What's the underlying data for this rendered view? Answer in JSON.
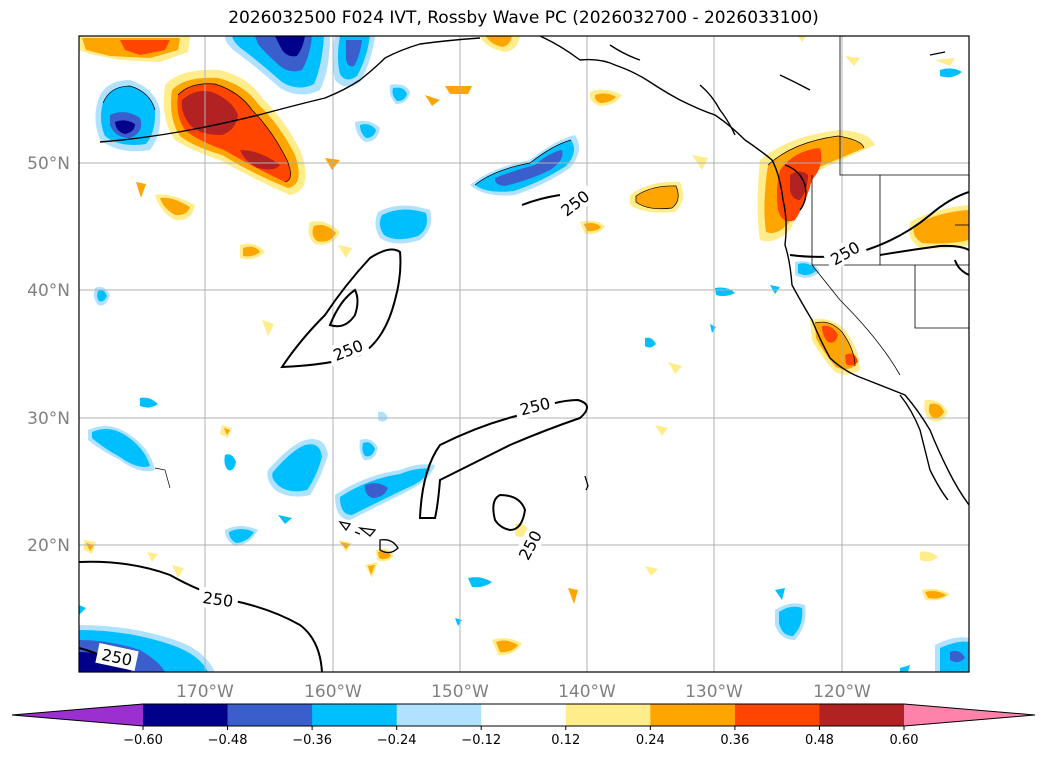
{
  "title": "2026032500 F024 IVT, Rossby Wave PC (2026032700 - 2026033100)",
  "map": {
    "lat_labels": [
      "50°N",
      "40°N",
      "30°N",
      "20°N"
    ],
    "lon_labels": [
      "170°W",
      "160°W",
      "150°W",
      "140°W",
      "130°W",
      "120°W"
    ],
    "contour_labels": [
      "250",
      "250",
      "250",
      "250",
      "250",
      "250",
      "250"
    ],
    "contour_level": 250
  },
  "colorbar": {
    "ticks": [
      "−0.60",
      "−0.48",
      "−0.36",
      "−0.24",
      "−0.12",
      "0.12",
      "0.24",
      "0.36",
      "0.48",
      "0.60"
    ],
    "colors": [
      "#9b30d0",
      "#00008b",
      "#3a5fcd",
      "#00bfff",
      "#b0e2ff",
      "#ffffff",
      "#ffec8b",
      "#ffa500",
      "#ff4500",
      "#b22222",
      "#ff82ab"
    ]
  },
  "colors": {
    "neg_strong": "#00008b",
    "neg_med": "#3a5fcd",
    "neg_mid": "#00bfff",
    "neg_weak": "#b0e2ff",
    "pos_weak": "#ffec8b",
    "pos_mid": "#ffa500",
    "pos_med": "#ff4500",
    "pos_strong": "#b22222",
    "grid": "#b0b0b0"
  }
}
